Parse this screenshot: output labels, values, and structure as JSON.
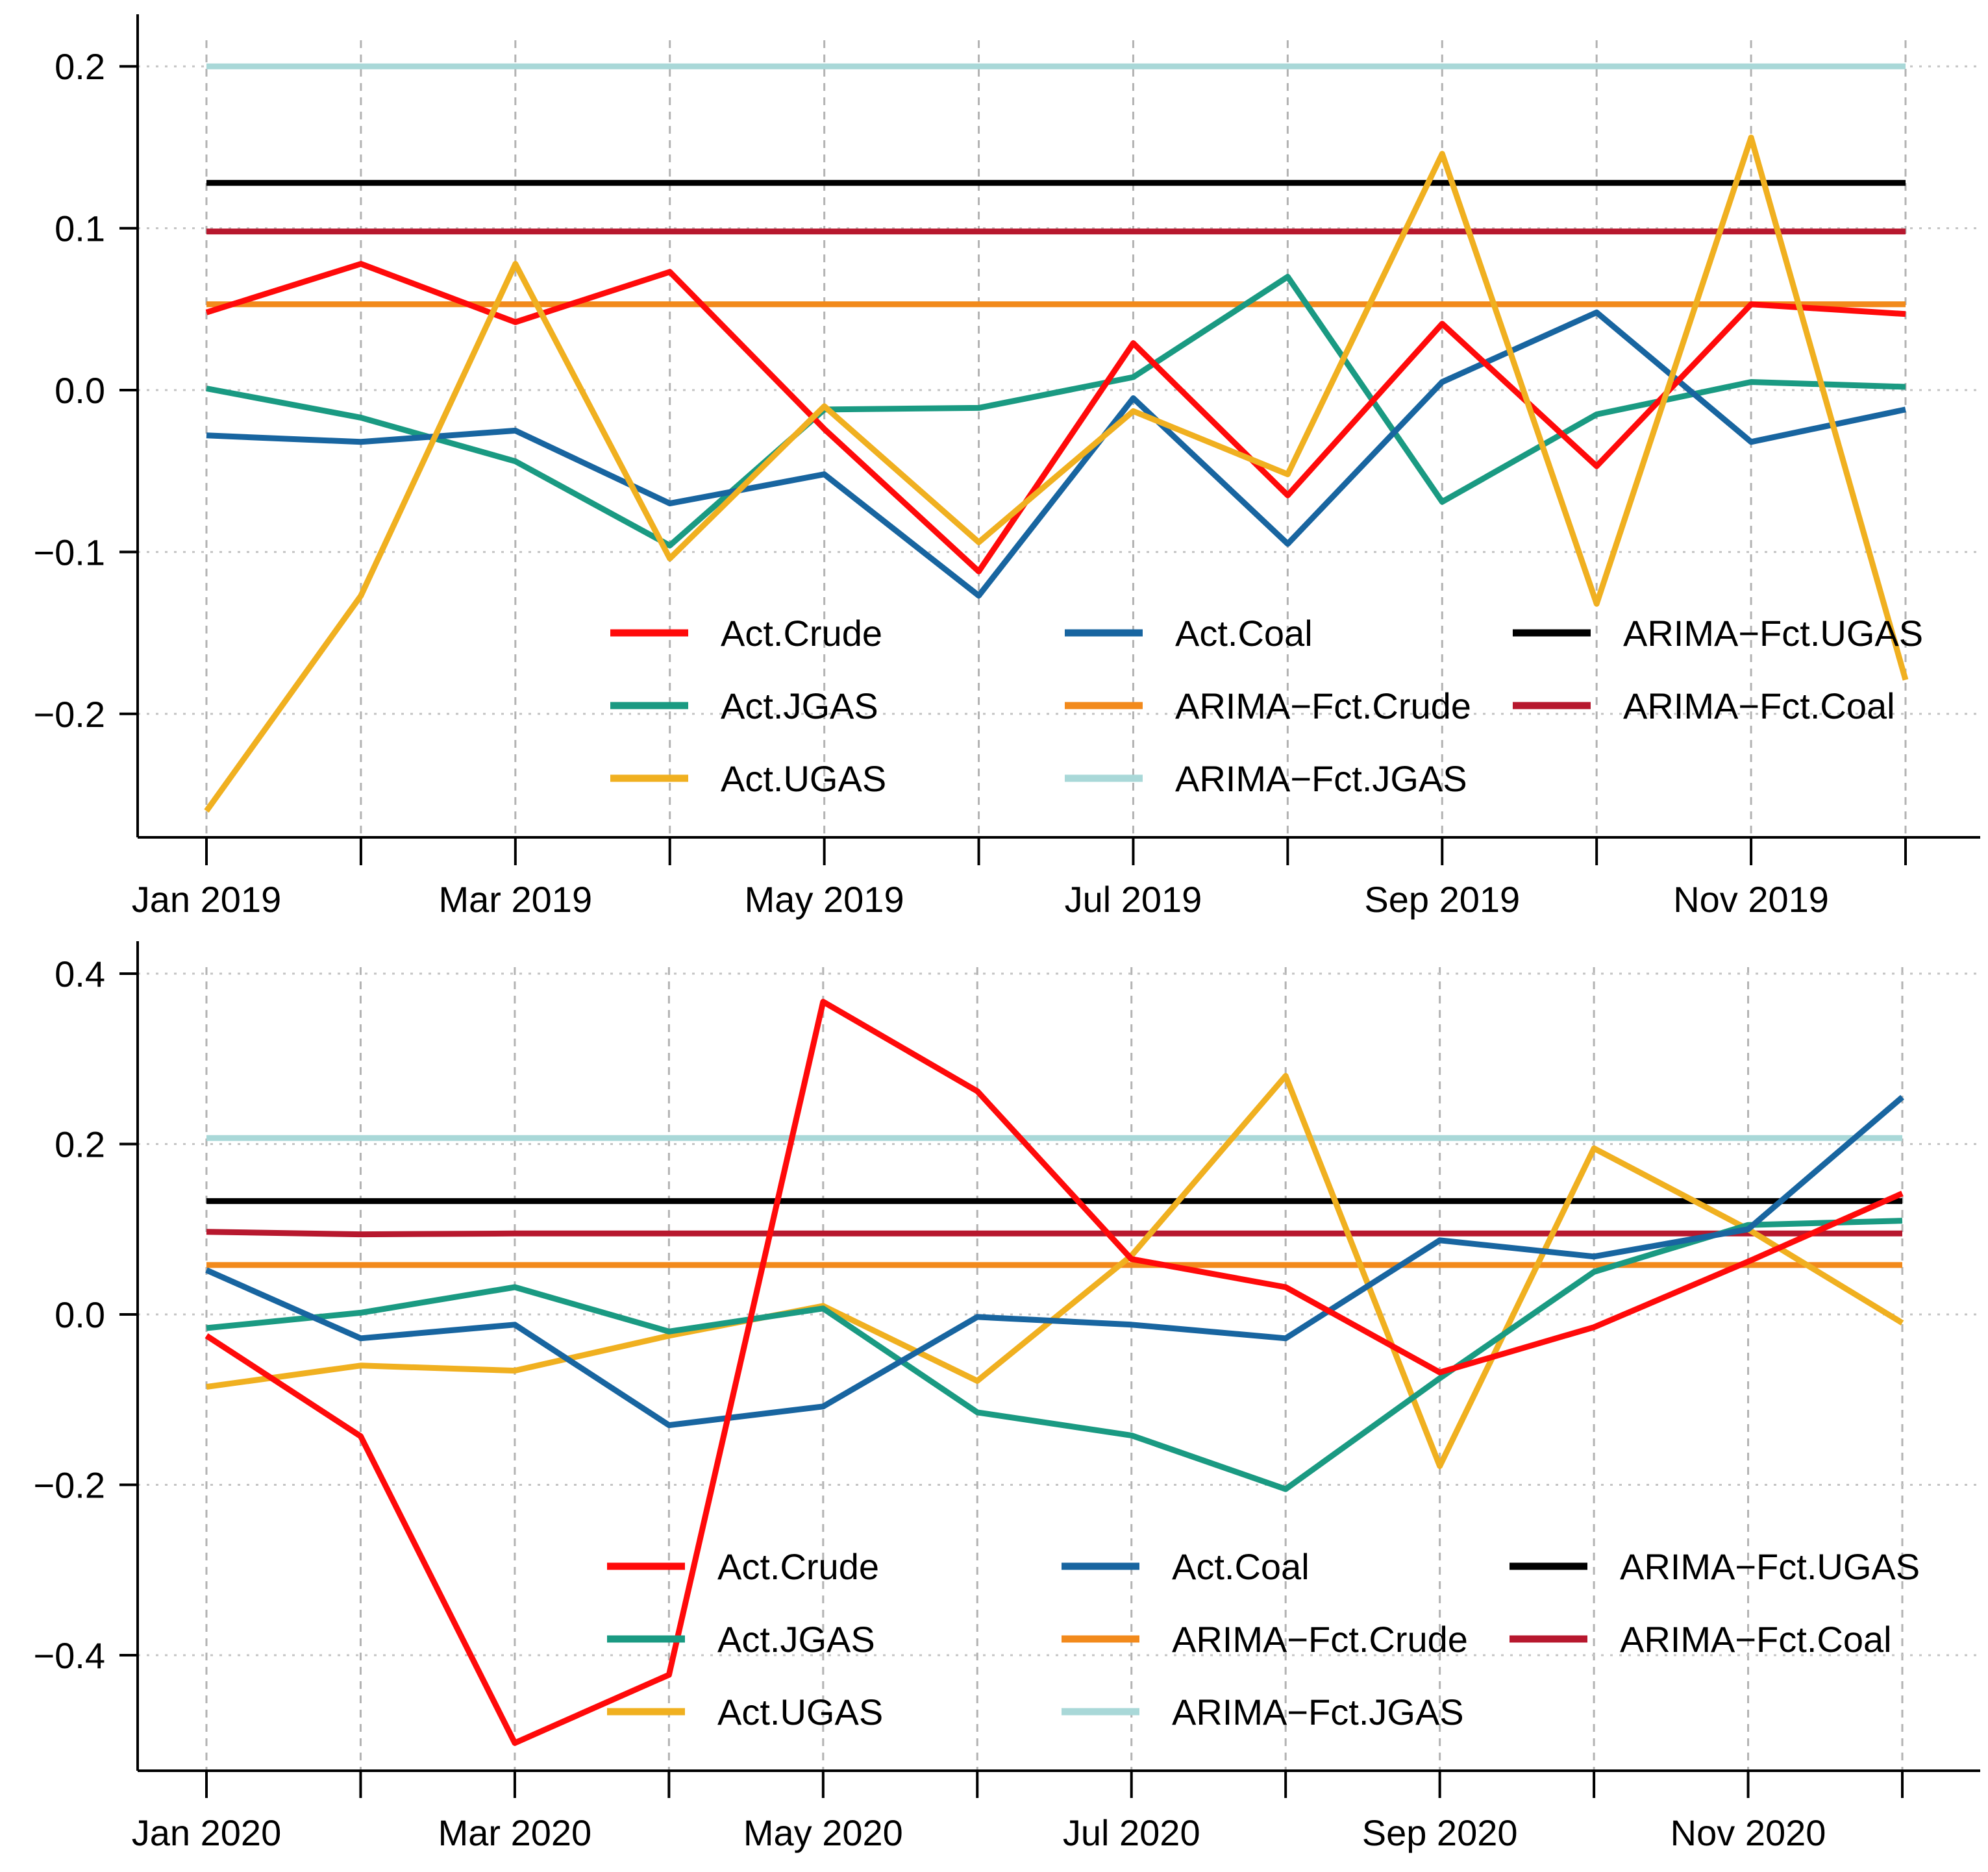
{
  "chart_data": [
    {
      "type": "line",
      "title": "",
      "xlabel": "",
      "ylabel": "",
      "x_tick_labels": [
        "Jan 2019",
        "Mar 2019",
        "May 2019",
        "Jul 2019",
        "Sep 2019",
        "Nov 2019"
      ],
      "x_tick_months": [
        0,
        2,
        4,
        6,
        8,
        10
      ],
      "months": 12,
      "y_ticks": [
        -0.2,
        -0.1,
        0.0,
        0.1,
        0.2
      ],
      "y_tick_labels": [
        "−0.2",
        "−0.1",
        "0.0",
        "0.1",
        "0.2"
      ],
      "ylim": [
        -0.28,
        0.21
      ],
      "grid": true,
      "legend_placement": "bottom-right",
      "legend_columns": [
        [
          "Act.Crude",
          "Act.JGAS",
          "Act.UGAS"
        ],
        [
          "Act.Coal",
          "ARIMA−Fct.Crude",
          "ARIMA−Fct.JGAS"
        ],
        [
          "ARIMA−Fct.UGAS",
          "ARIMA−Fct.Coal"
        ]
      ],
      "series": [
        {
          "name": "ARIMA−Fct.JGAS",
          "color": "#a9d8d8",
          "values": [
            0.2,
            0.2,
            0.2,
            0.2,
            0.2,
            0.2,
            0.2,
            0.2,
            0.2,
            0.2,
            0.2,
            0.2
          ]
        },
        {
          "name": "ARIMA−Fct.UGAS",
          "color": "#000000",
          "values": [
            0.128,
            0.128,
            0.128,
            0.128,
            0.128,
            0.128,
            0.128,
            0.128,
            0.128,
            0.128,
            0.128,
            0.128
          ]
        },
        {
          "name": "ARIMA−Fct.Coal",
          "color": "#b7182e",
          "values": [
            0.098,
            0.098,
            0.098,
            0.098,
            0.098,
            0.098,
            0.098,
            0.098,
            0.098,
            0.098,
            0.098,
            0.098
          ]
        },
        {
          "name": "ARIMA−Fct.Crude",
          "color": "#f28a1c",
          "values": [
            0.053,
            0.053,
            0.053,
            0.053,
            0.053,
            0.053,
            0.053,
            0.053,
            0.053,
            0.053,
            0.053,
            0.053
          ]
        },
        {
          "name": "Act.JGAS",
          "color": "#1a9a82",
          "values": [
            0.001,
            -0.017,
            -0.044,
            -0.096,
            -0.012,
            -0.011,
            0.008,
            0.07,
            -0.069,
            -0.015,
            0.005,
            0.002
          ]
        },
        {
          "name": "Act.Coal",
          "color": "#1865a0",
          "values": [
            -0.028,
            -0.032,
            -0.025,
            -0.07,
            -0.052,
            -0.127,
            -0.005,
            -0.095,
            0.005,
            0.048,
            -0.032,
            -0.012
          ]
        },
        {
          "name": "Act.Crude",
          "color": "#ff0a0a",
          "values": [
            0.048,
            0.078,
            0.042,
            0.073,
            -0.024,
            -0.112,
            0.029,
            -0.065,
            0.041,
            -0.047,
            0.053,
            0.047
          ]
        },
        {
          "name": "Act.UGAS",
          "color": "#f0b020",
          "values": [
            -0.26,
            -0.127,
            0.078,
            -0.104,
            -0.01,
            -0.094,
            -0.013,
            -0.052,
            0.146,
            -0.132,
            0.156,
            -0.179
          ]
        }
      ]
    },
    {
      "type": "line",
      "title": "",
      "xlabel": "",
      "ylabel": "",
      "x_tick_labels": [
        "Jan 2020",
        "Mar 2020",
        "May 2020",
        "Jul 2020",
        "Sep 2020",
        "Nov 2020"
      ],
      "x_tick_months": [
        0,
        2,
        4,
        6,
        8,
        10
      ],
      "months": 12,
      "y_ticks": [
        -0.4,
        -0.2,
        0.0,
        0.2,
        0.4
      ],
      "y_tick_labels": [
        "−0.4",
        "−0.2",
        "0.0",
        "0.2",
        "0.4"
      ],
      "ylim": [
        -0.53,
        0.4
      ],
      "grid": true,
      "legend_placement": "bottom-right",
      "legend_columns": [
        [
          "Act.Crude",
          "Act.JGAS",
          "Act.UGAS"
        ],
        [
          "Act.Coal",
          "ARIMA−Fct.Crude",
          "ARIMA−Fct.JGAS"
        ],
        [
          "ARIMA−Fct.UGAS",
          "ARIMA−Fct.Coal"
        ]
      ],
      "series": [
        {
          "name": "ARIMA−Fct.JGAS",
          "color": "#a9d8d8",
          "values": [
            0.207,
            0.207,
            0.207,
            0.207,
            0.207,
            0.207,
            0.207,
            0.207,
            0.207,
            0.207,
            0.207,
            0.207
          ]
        },
        {
          "name": "ARIMA−Fct.UGAS",
          "color": "#000000",
          "values": [
            0.133,
            0.133,
            0.133,
            0.133,
            0.133,
            0.133,
            0.133,
            0.133,
            0.133,
            0.133,
            0.133,
            0.133
          ]
        },
        {
          "name": "ARIMA−Fct.Coal",
          "color": "#b7182e",
          "values": [
            0.097,
            0.094,
            0.095,
            0.095,
            0.095,
            0.095,
            0.095,
            0.095,
            0.095,
            0.095,
            0.095,
            0.095
          ]
        },
        {
          "name": "ARIMA−Fct.Crude",
          "color": "#f28a1c",
          "values": [
            0.058,
            0.058,
            0.058,
            0.058,
            0.058,
            0.058,
            0.058,
            0.058,
            0.058,
            0.058,
            0.058,
            0.058
          ]
        },
        {
          "name": "Act.UGAS",
          "color": "#f0b020",
          "values": [
            -0.085,
            -0.06,
            -0.066,
            -0.025,
            0.01,
            -0.078,
            0.069,
            0.28,
            -0.178,
            0.195,
            0.1,
            -0.01
          ]
        },
        {
          "name": "Act.JGAS",
          "color": "#1a9a82",
          "values": [
            -0.016,
            0.002,
            0.032,
            -0.02,
            0.007,
            -0.115,
            -0.142,
            -0.205,
            -0.075,
            0.05,
            0.105,
            0.11
          ]
        },
        {
          "name": "Act.Coal",
          "color": "#1865a0",
          "values": [
            0.052,
            -0.028,
            -0.012,
            -0.13,
            -0.108,
            -0.003,
            -0.012,
            -0.028,
            0.087,
            0.068,
            0.1,
            0.255
          ]
        },
        {
          "name": "Act.Crude",
          "color": "#ff0a0a",
          "values": [
            -0.025,
            -0.143,
            -0.503,
            -0.423,
            0.367,
            0.262,
            0.065,
            0.032,
            -0.068,
            -0.015,
            0.062,
            0.142
          ]
        }
      ]
    }
  ]
}
